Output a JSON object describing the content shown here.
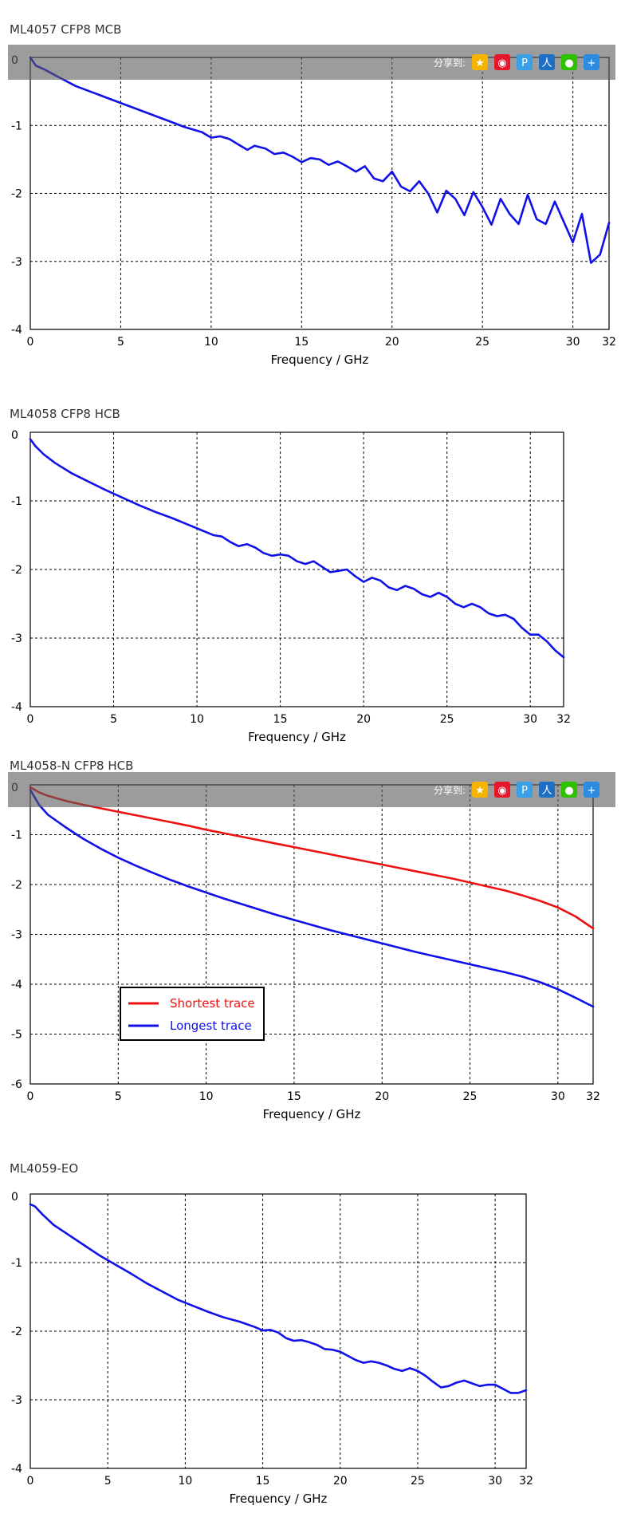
{
  "share": {
    "label": "分享到:",
    "icons": [
      "qzone-icon",
      "weibo-icon",
      "tencent-weibo-icon",
      "renren-icon",
      "wechat-icon",
      "more-share-icon"
    ]
  },
  "chart_data": [
    {
      "type": "line",
      "title": "ML4057 CFP8 MCB",
      "xlabel": "Frequency / GHz",
      "ylabel": "",
      "xlim": [
        0,
        32
      ],
      "ylim": [
        -4,
        0
      ],
      "xticks": [
        0,
        5,
        10,
        15,
        20,
        25,
        30,
        32
      ],
      "yticks": [
        0,
        -1,
        -2,
        -3,
        -4
      ],
      "grid": true,
      "share_bar": true,
      "legend": null,
      "series": [
        {
          "name": "trace",
          "color": "#1010e8",
          "x": [
            0,
            0.3,
            0.8,
            1.5,
            2.5,
            3.5,
            4.5,
            5.5,
            6.5,
            7.5,
            8.5,
            9.5,
            10,
            10.5,
            11,
            11.5,
            12,
            12.4,
            13,
            13.5,
            14,
            14.5,
            15,
            15.5,
            16,
            16.5,
            17,
            17.5,
            18,
            18.5,
            19,
            19.5,
            20,
            20.5,
            21,
            21.5,
            22,
            22.5,
            23,
            23.5,
            24,
            24.5,
            25,
            25.5,
            26,
            26.5,
            27,
            27.5,
            28,
            28.5,
            29,
            29.5,
            30,
            30.5,
            31,
            31.5,
            32
          ],
          "y": [
            0.0,
            -0.12,
            -0.18,
            -0.28,
            -0.42,
            -0.52,
            -0.62,
            -0.72,
            -0.82,
            -0.92,
            -1.02,
            -1.1,
            -1.18,
            -1.16,
            -1.2,
            -1.28,
            -1.36,
            -1.3,
            -1.34,
            -1.42,
            -1.4,
            -1.46,
            -1.54,
            -1.48,
            -1.5,
            -1.58,
            -1.53,
            -1.6,
            -1.68,
            -1.6,
            -1.78,
            -1.82,
            -1.68,
            -1.9,
            -1.97,
            -1.82,
            -2.0,
            -2.28,
            -1.96,
            -2.08,
            -2.32,
            -1.98,
            -2.2,
            -2.46,
            -2.08,
            -2.3,
            -2.45,
            -2.02,
            -2.38,
            -2.45,
            -2.12,
            -2.42,
            -2.72,
            -2.3,
            -3.02,
            -2.9,
            -2.43
          ]
        }
      ]
    },
    {
      "type": "line",
      "title": "ML4058 CFP8 HCB",
      "xlabel": "Frequency / GHz",
      "ylabel": "",
      "xlim": [
        0,
        32
      ],
      "ylim": [
        -4,
        0
      ],
      "xticks": [
        0,
        5,
        10,
        15,
        20,
        25,
        30,
        32
      ],
      "yticks": [
        0,
        -1,
        -2,
        -3,
        -4
      ],
      "grid": true,
      "share_bar": false,
      "legend": null,
      "series": [
        {
          "name": "trace",
          "color": "#1010e8",
          "x": [
            0,
            0.3,
            0.8,
            1.5,
            2.5,
            3.5,
            4.5,
            5.5,
            6.5,
            7.5,
            8.5,
            9.5,
            10.5,
            11,
            11.5,
            12,
            12.5,
            13,
            13.5,
            14,
            14.5,
            15,
            15.5,
            16,
            16.5,
            17,
            17.5,
            18,
            18.5,
            19,
            19.5,
            20,
            20.5,
            21,
            21.5,
            22,
            22.5,
            23,
            23.5,
            24,
            24.5,
            25,
            25.5,
            26,
            26.5,
            27,
            27.5,
            28,
            28.5,
            29,
            29.5,
            30,
            30.5,
            31,
            31.5,
            32
          ],
          "y": [
            -0.1,
            -0.2,
            -0.32,
            -0.45,
            -0.6,
            -0.72,
            -0.84,
            -0.95,
            -1.06,
            -1.16,
            -1.25,
            -1.35,
            -1.45,
            -1.5,
            -1.52,
            -1.6,
            -1.66,
            -1.63,
            -1.68,
            -1.76,
            -1.8,
            -1.78,
            -1.8,
            -1.88,
            -1.92,
            -1.88,
            -1.96,
            -2.04,
            -2.02,
            -2.0,
            -2.1,
            -2.18,
            -2.12,
            -2.16,
            -2.26,
            -2.3,
            -2.24,
            -2.28,
            -2.36,
            -2.4,
            -2.34,
            -2.4,
            -2.5,
            -2.55,
            -2.5,
            -2.55,
            -2.64,
            -2.68,
            -2.66,
            -2.72,
            -2.85,
            -2.95,
            -2.95,
            -3.05,
            -3.18,
            -3.28
          ]
        }
      ]
    },
    {
      "type": "line",
      "title": "ML4058-N CFP8 HCB",
      "xlabel": "Frequency / GHz",
      "ylabel": "",
      "xlim": [
        0,
        32
      ],
      "ylim": [
        -6,
        0
      ],
      "xticks": [
        0,
        5,
        10,
        15,
        20,
        25,
        30,
        32
      ],
      "yticks": [
        0,
        -1,
        -2,
        -3,
        -4,
        -5,
        -6
      ],
      "grid": true,
      "share_bar": true,
      "legend": {
        "location": "lower-left"
      },
      "series": [
        {
          "name": "Shortest trace",
          "color": "#ee1111",
          "x": [
            0,
            0.5,
            1,
            2,
            3,
            4,
            5,
            6,
            7,
            8,
            9,
            10,
            11,
            12,
            13,
            14,
            15,
            16,
            17,
            18,
            19,
            20,
            21,
            22,
            23,
            24,
            25,
            26,
            27,
            28,
            29,
            30,
            31,
            32
          ],
          "y": [
            -0.05,
            -0.15,
            -0.22,
            -0.32,
            -0.4,
            -0.47,
            -0.54,
            -0.61,
            -0.68,
            -0.75,
            -0.82,
            -0.9,
            -0.97,
            -1.04,
            -1.11,
            -1.18,
            -1.25,
            -1.32,
            -1.39,
            -1.46,
            -1.53,
            -1.6,
            -1.67,
            -1.74,
            -1.81,
            -1.88,
            -1.96,
            -2.04,
            -2.12,
            -2.22,
            -2.33,
            -2.46,
            -2.64,
            -2.88
          ]
        },
        {
          "name": "Longest trace",
          "color": "#1010e8",
          "x": [
            0,
            0.5,
            1,
            2,
            3,
            4,
            5,
            6,
            7,
            8,
            9,
            10,
            11,
            12,
            13,
            14,
            15,
            16,
            17,
            18,
            19,
            20,
            21,
            22,
            23,
            24,
            25,
            26,
            27,
            28,
            29,
            30,
            31,
            32
          ],
          "y": [
            -0.1,
            -0.4,
            -0.6,
            -0.85,
            -1.08,
            -1.28,
            -1.46,
            -1.62,
            -1.77,
            -1.91,
            -2.04,
            -2.16,
            -2.28,
            -2.39,
            -2.5,
            -2.61,
            -2.71,
            -2.81,
            -2.91,
            -3.0,
            -3.09,
            -3.18,
            -3.27,
            -3.36,
            -3.44,
            -3.52,
            -3.6,
            -3.68,
            -3.76,
            -3.85,
            -3.96,
            -4.1,
            -4.27,
            -4.45
          ]
        }
      ]
    },
    {
      "type": "line",
      "title": "ML4059-EO",
      "xlabel": "Frequency / GHz",
      "ylabel": "",
      "xlim": [
        0,
        32
      ],
      "ylim": [
        -4,
        0
      ],
      "xticks": [
        0,
        5,
        10,
        15,
        20,
        25,
        30,
        32
      ],
      "yticks": [
        0,
        -1,
        -2,
        -3,
        -4
      ],
      "grid": true,
      "share_bar": false,
      "legend": null,
      "series": [
        {
          "name": "trace",
          "color": "#1010e8",
          "x": [
            0,
            0.3,
            0.8,
            1.5,
            2.5,
            3.5,
            4.5,
            5.5,
            6.5,
            7.5,
            8.5,
            9.5,
            10.5,
            11.5,
            12.5,
            13.5,
            14.5,
            15,
            15.5,
            16,
            16.5,
            17,
            17.5,
            18,
            18.5,
            19,
            19.5,
            20,
            20.5,
            21,
            21.5,
            22,
            22.5,
            23,
            23.5,
            24,
            24.5,
            25,
            25.5,
            26,
            26.5,
            27,
            27.5,
            28,
            28.5,
            29,
            29.5,
            30,
            30.5,
            31,
            31.5,
            32
          ],
          "y": [
            -0.15,
            -0.18,
            -0.3,
            -0.45,
            -0.6,
            -0.75,
            -0.9,
            -1.03,
            -1.16,
            -1.3,
            -1.42,
            -1.54,
            -1.63,
            -1.72,
            -1.8,
            -1.86,
            -1.94,
            -1.99,
            -1.98,
            -2.02,
            -2.1,
            -2.14,
            -2.13,
            -2.16,
            -2.2,
            -2.26,
            -2.27,
            -2.3,
            -2.36,
            -2.42,
            -2.46,
            -2.44,
            -2.46,
            -2.5,
            -2.55,
            -2.58,
            -2.54,
            -2.58,
            -2.65,
            -2.74,
            -2.82,
            -2.8,
            -2.75,
            -2.72,
            -2.76,
            -2.8,
            -2.78,
            -2.78,
            -2.84,
            -2.9,
            -2.9,
            -2.86
          ]
        }
      ]
    }
  ]
}
